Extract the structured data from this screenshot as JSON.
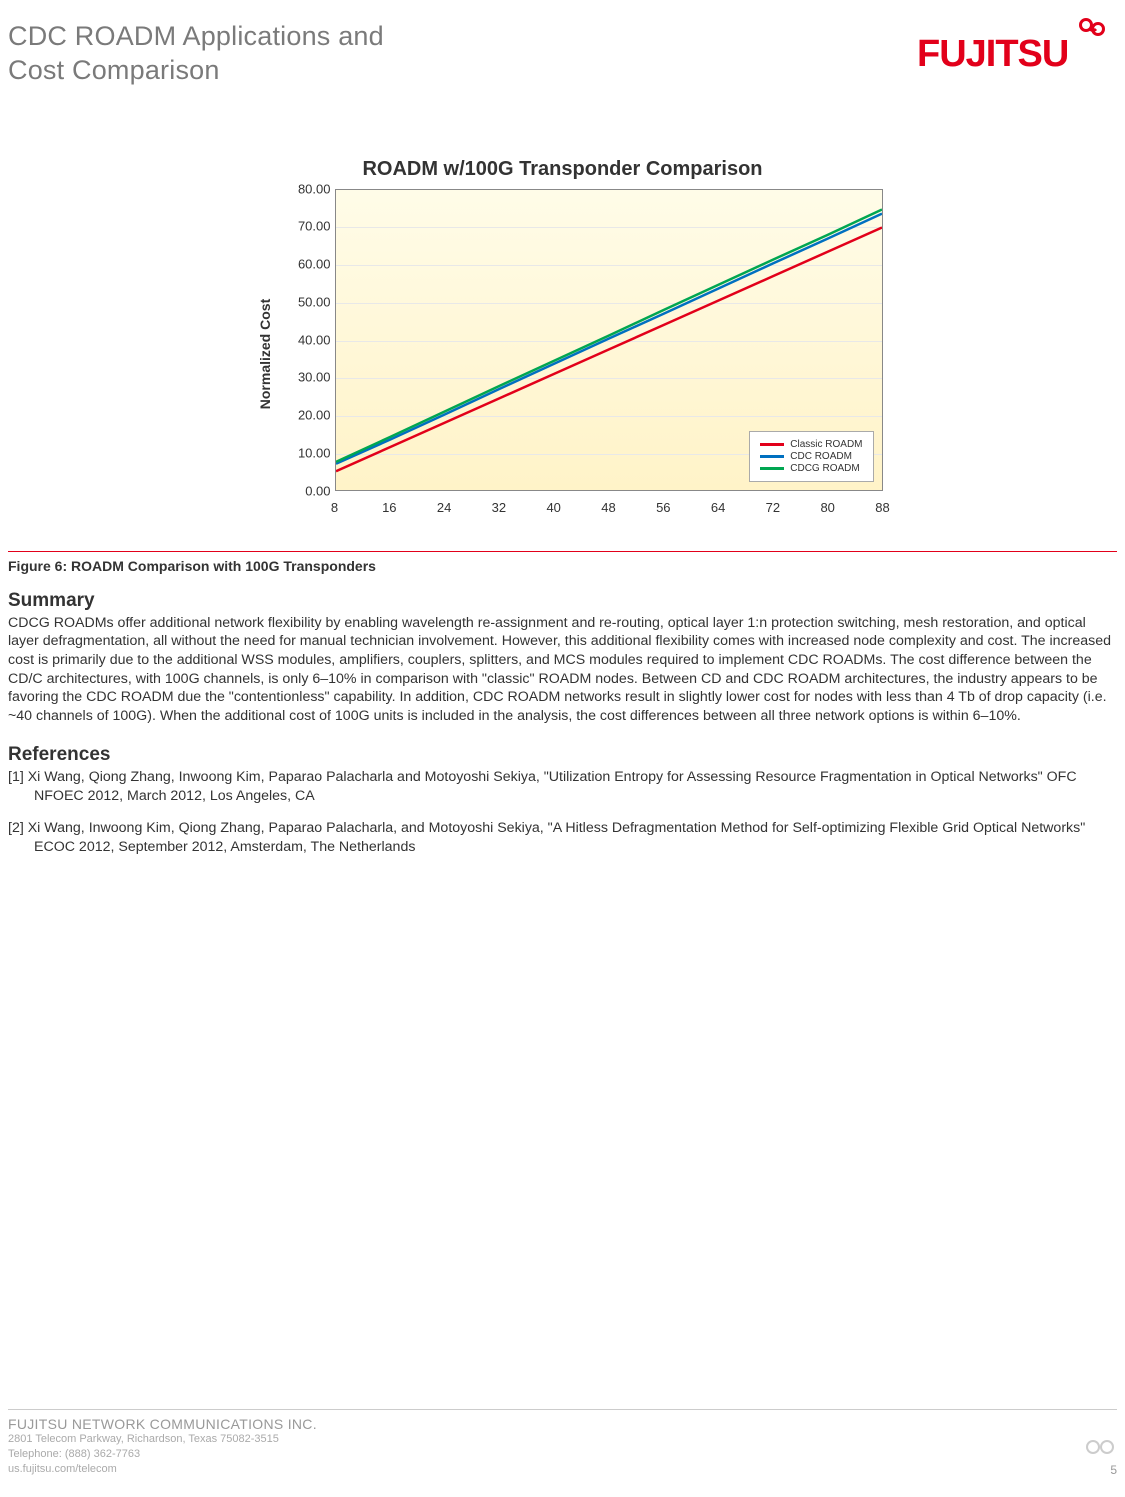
{
  "header": {
    "title_line1": "CDC ROADM Applications and",
    "title_line2": "Cost Comparison",
    "logo_text": "FUJITSU",
    "logo_color": "#e2001a"
  },
  "chart": {
    "type": "line",
    "title": "ROADM w/100G Transponder Comparison",
    "ylabel": "Normalized Cost",
    "x_categories": [
      "8",
      "16",
      "24",
      "32",
      "40",
      "48",
      "56",
      "64",
      "72",
      "80",
      "88"
    ],
    "y_ticks": [
      "0.00",
      "10.00",
      "20.00",
      "30.00",
      "40.00",
      "50.00",
      "60.00",
      "70.00",
      "80.00"
    ],
    "ylim": [
      0,
      80
    ],
    "series": [
      {
        "name": "Classic ROADM",
        "color": "#e2001a",
        "values": [
          5,
          11.5,
          18,
          24.5,
          31,
          37.5,
          44,
          50.5,
          57,
          63.5,
          70
        ]
      },
      {
        "name": "CDC ROADM",
        "color": "#0070c0",
        "values": [
          7,
          13.5,
          20.2,
          27,
          33.7,
          40.4,
          47,
          53.7,
          60.4,
          67,
          73.7
        ]
      },
      {
        "name": "CDCG ROADM",
        "color": "#00a651",
        "values": [
          7.5,
          14.2,
          21,
          27.8,
          34.5,
          41.2,
          48,
          54.7,
          61.4,
          68,
          74.8
        ]
      }
    ],
    "line_width": 2.5,
    "background_gradient_top": "#fffce8",
    "background_gradient_bottom": "#fff3c8",
    "border_color": "#888888",
    "grid_color": "#e8e8e8",
    "tick_fontsize": 13,
    "label_fontsize": 14,
    "legend_fontsize": 10,
    "legend_border": "#aaaaaa"
  },
  "figure_caption": "Figure 6: ROADM Comparison with 100G Transponders",
  "summary": {
    "heading": "Summary",
    "text": "CDCG ROADMs offer additional network flexibility by enabling wavelength re-assignment and re-routing, optical layer 1:n protection switching, mesh restoration, and optical layer defragmentation, all without the need for manual technician involvement. However, this additional flexibility comes with increased node complexity and cost. The increased cost is primarily due to the additional WSS modules, amplifiers, couplers, splitters, and MCS modules required to implement CDC ROADMs. The cost difference between the CD/C architectures, with 100G channels, is only 6–10% in comparison with \"classic\" ROADM nodes. Between CD and CDC ROADM architectures, the industry appears to be favoring the CDC ROADM due the \"contentionless\" capability. In addition, CDC ROADM networks result in slightly lower cost for nodes with less than 4 Tb of drop capacity (i.e. ~40 channels of 100G). When the additional cost of 100G units is included in the analysis, the cost differences between all three network options is within 6–10%."
  },
  "references": {
    "heading": "References",
    "items": [
      "[1] Xi Wang, Qiong Zhang, Inwoong Kim, Paparao Palacharla and Motoyoshi Sekiya, \"Utilization Entropy for Assessing Resource Fragmentation in Optical Networks\" OFC NFOEC 2012, March 2012, Los Angeles, CA",
      "[2] Xi Wang, Inwoong Kim, Qiong Zhang, Paparao Palacharla, and Motoyoshi Sekiya, \"A Hitless Defragmentation Method for Self-optimizing Flexible Grid Optical Networks\" ECOC 2012, September 2012, Amsterdam, The Netherlands"
    ]
  },
  "footer": {
    "company": "FUJITSU NETWORK COMMUNICATIONS INC.",
    "addr1": "2801 Telecom Parkway, Richardson, Texas 75082-3515",
    "addr2": "Telephone:  (888) 362-7763",
    "addr3": "us.fujitsu.com/telecom",
    "page": "5",
    "mark_color": "#cccccc"
  }
}
